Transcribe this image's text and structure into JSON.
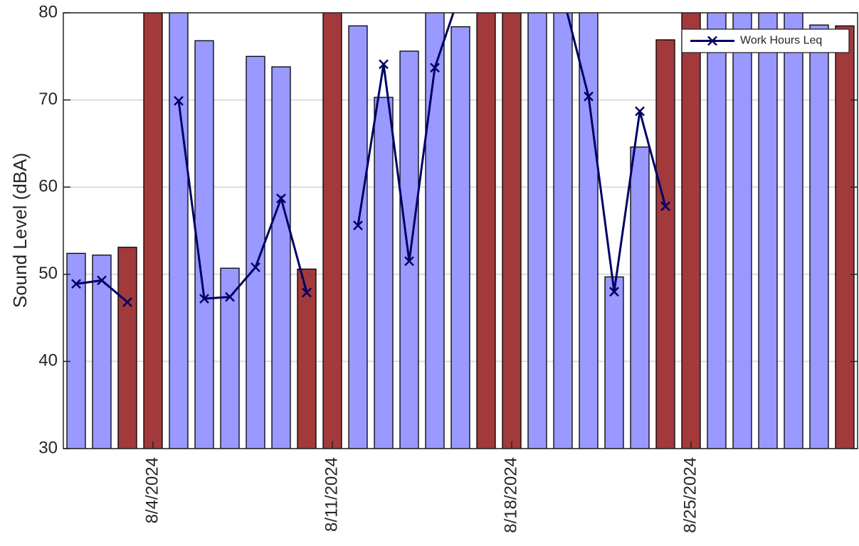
{
  "chart_data": {
    "type": "bar-line",
    "y_label": "Sound Level (dBA)",
    "categories": [
      null,
      null,
      null,
      "8/4/2024",
      null,
      null,
      null,
      null,
      null,
      null,
      "8/11/2024",
      null,
      null,
      null,
      null,
      null,
      null,
      "8/18/2024",
      null,
      null,
      null,
      null,
      null,
      null,
      "8/25/2024",
      null,
      null,
      null,
      null,
      null,
      null
    ],
    "bars": {
      "values": [
        52.4,
        52.2,
        53.1,
        85,
        85,
        76.8,
        50.7,
        75.0,
        73.8,
        50.6,
        85,
        78.5,
        70.3,
        75.6,
        85,
        78.4,
        85,
        85,
        85,
        85,
        85,
        49.7,
        64.6,
        76.9,
        85,
        85,
        85,
        85,
        85,
        78.6,
        78.5
      ],
      "colors": [
        "#9999ff",
        "#9999ff",
        "#a2393b",
        "#a2393b",
        "#9999ff",
        "#9999ff",
        "#9999ff",
        "#9999ff",
        "#9999ff",
        "#a2393b",
        "#a2393b",
        "#9999ff",
        "#9999ff",
        "#9999ff",
        "#9999ff",
        "#9999ff",
        "#a2393b",
        "#a2393b",
        "#9999ff",
        "#9999ff",
        "#9999ff",
        "#9999ff",
        "#9999ff",
        "#a2393b",
        "#a2393b",
        "#9999ff",
        "#9999ff",
        "#9999ff",
        "#9999ff",
        "#9999ff",
        "#a2393b"
      ]
    },
    "series": [
      {
        "name": "Work Hours Leq",
        "color": "#000066",
        "values": [
          48.9,
          49.3,
          46.8,
          null,
          69.9,
          47.2,
          47.4,
          50.8,
          58.7,
          47.9,
          null,
          55.6,
          74.1,
          51.5,
          73.7,
          82.4,
          null,
          null,
          85,
          81.9,
          70.4,
          48.0,
          68.7,
          57.8,
          null,
          null,
          null,
          null,
          null,
          null,
          null
        ]
      }
    ],
    "ylim": [
      30,
      80
    ],
    "yticks": [
      30,
      40,
      50,
      60,
      70,
      80
    ],
    "grid": true,
    "legend": "upper right"
  }
}
